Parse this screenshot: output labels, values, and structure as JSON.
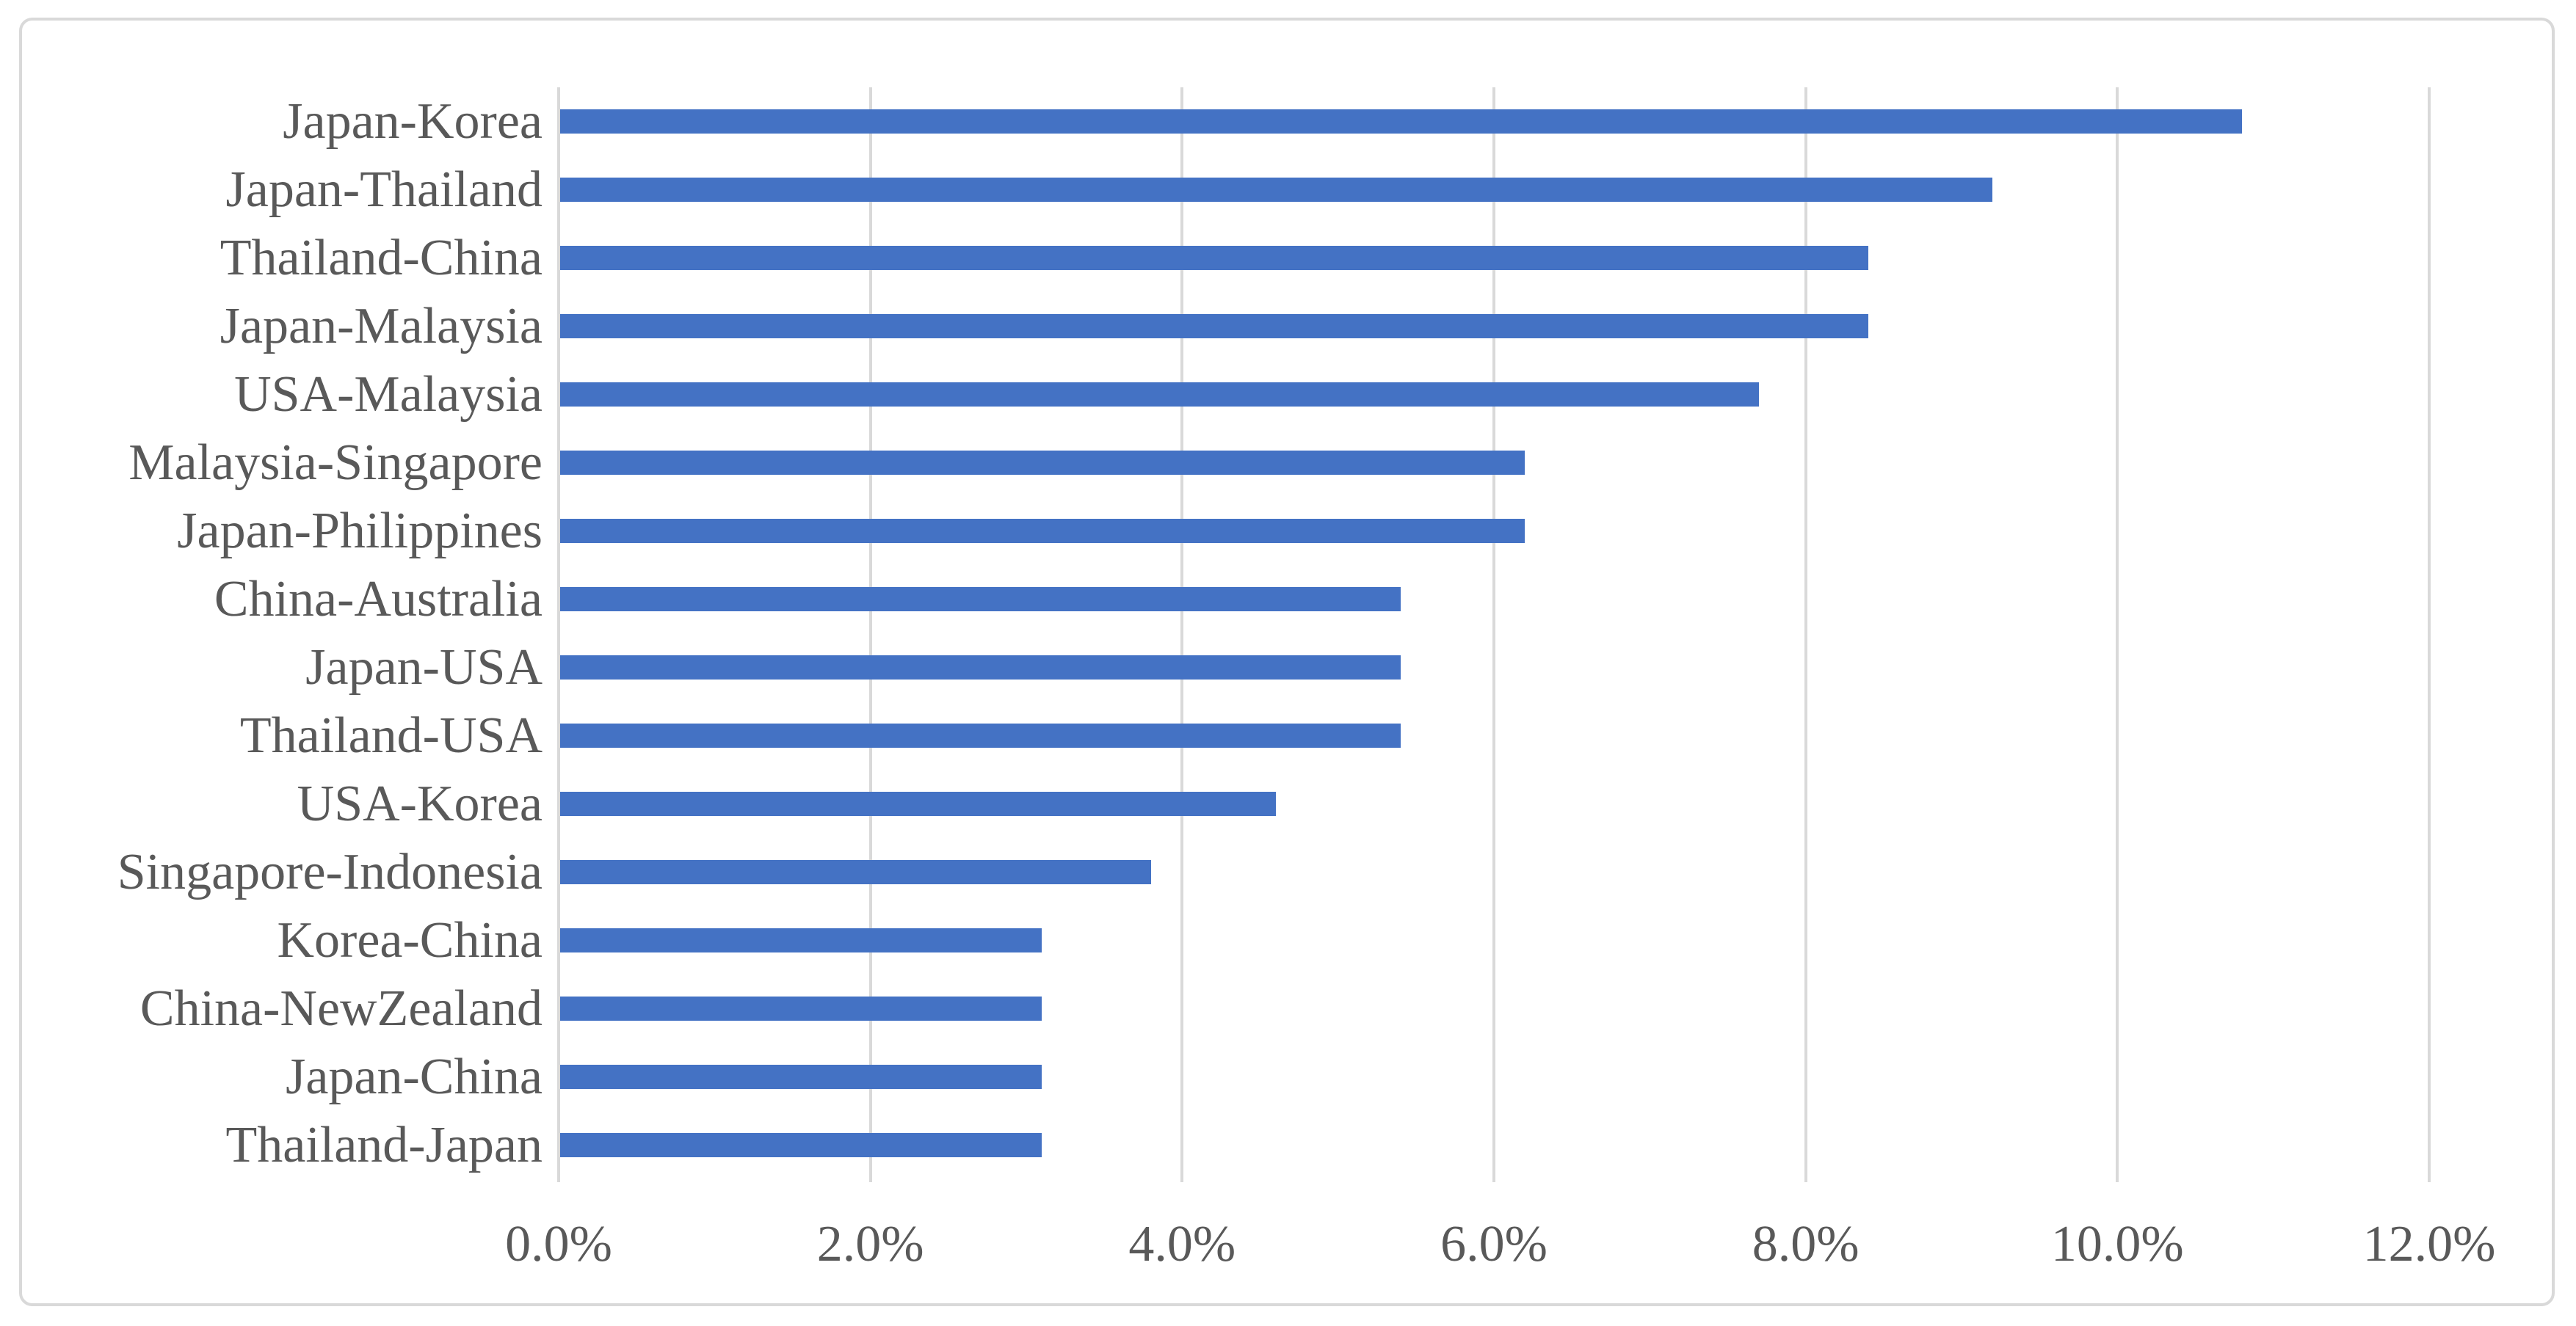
{
  "chart_data": {
    "type": "bar",
    "orientation": "horizontal",
    "title": "",
    "categories": [
      "Japan-Korea",
      "Japan-Thailand",
      "Thailand-China",
      "Japan-Malaysia",
      "USA-Malaysia",
      "Malaysia-Singapore",
      "Japan-Philippines",
      "China-Australia",
      "Japan-USA",
      "Thailand-USA",
      "USA-Korea",
      "Singapore-Indonesia",
      "Korea-China",
      "China-NewZealand",
      "Japan-China",
      "Thailand-Japan"
    ],
    "values": [
      10.8,
      9.2,
      8.4,
      8.4,
      7.7,
      6.2,
      6.2,
      5.4,
      5.4,
      5.4,
      4.6,
      3.8,
      3.1,
      3.1,
      3.1,
      3.1
    ],
    "value_unit": "%",
    "xlabel": "",
    "ylabel": "",
    "xlim": [
      0,
      12
    ],
    "x_tick_values": [
      0,
      2,
      4,
      6,
      8,
      10,
      12
    ],
    "x_tick_labels": [
      "0.0%",
      "2.0%",
      "4.0%",
      "6.0%",
      "8.0%",
      "10.0%",
      "12.0%"
    ],
    "grid": true,
    "legend": false,
    "colors": {
      "bar": "#4472C4",
      "gridline": "#D9D9D9",
      "axis_line": "#D9D9D9",
      "text": "#595959",
      "frame_border": "#D9D9D9",
      "background": "#FFFFFF"
    }
  }
}
